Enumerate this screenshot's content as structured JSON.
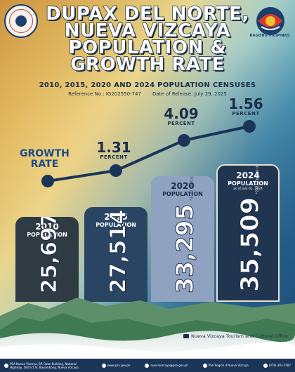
{
  "header": {
    "title_lines": [
      "DUPAX DEL NORTE,",
      "NUEVA VIZCAYA",
      "POPULATION &",
      "GROWTH RATE"
    ],
    "subtitle": "2010, 2015, 2020 AND 2024 POPULATION CENSUSES",
    "reference": "Reference No.: IG202550-747",
    "release": "Date of Release: July 29, 2025",
    "logo_text": "BAGONG PILIPINAS"
  },
  "growth_label": [
    "GROWTH",
    "RATE"
  ],
  "colors": {
    "bar_2010": "#2f3b42",
    "bar_2015": "#2a4563",
    "bar_2020": "#8fa2bf",
    "bar_2024": "#1f3550",
    "line": "#1b3559",
    "accent": "#1c4e8a"
  },
  "chart_data": {
    "type": "bar",
    "categories": [
      "2010",
      "2015",
      "2020",
      "2024"
    ],
    "values": [
      25697,
      27514,
      33295,
      35509
    ],
    "value_labels": [
      "25,697",
      "27,514",
      "33,295",
      "35,509"
    ],
    "population_label": "POPULATION",
    "as_of": [
      "",
      "",
      "",
      "as of July 01, 2024"
    ],
    "sources": [
      "*2010 Census of Population and Housing",
      "*2015 Census of Population",
      "*2020 Census of Population and Housing",
      "*2024 Census of Population"
    ],
    "growth_rates": {
      "series_label": "GROWTH RATE",
      "periods": [
        "2015",
        "2020",
        "2024"
      ],
      "values": [
        1.31,
        4.09,
        1.56
      ],
      "labels": [
        "1.31",
        "4.09",
        "1.56"
      ],
      "unit": "PERCENT"
    }
  },
  "footer": {
    "office": "Nueva Vizcaya Tourism and Cultural Office",
    "address": "PSA Nueva Vizcaya, BR Gabe Building, National Highway, District IV, Bayombong, Nueva Vizcaya",
    "website": "www.psa.gov.ph",
    "email": "nuevavizcaya@psa.gov.ph",
    "facebook": "PSA Region II Nueva Vizcaya",
    "phone": "(078) 392-1587"
  }
}
